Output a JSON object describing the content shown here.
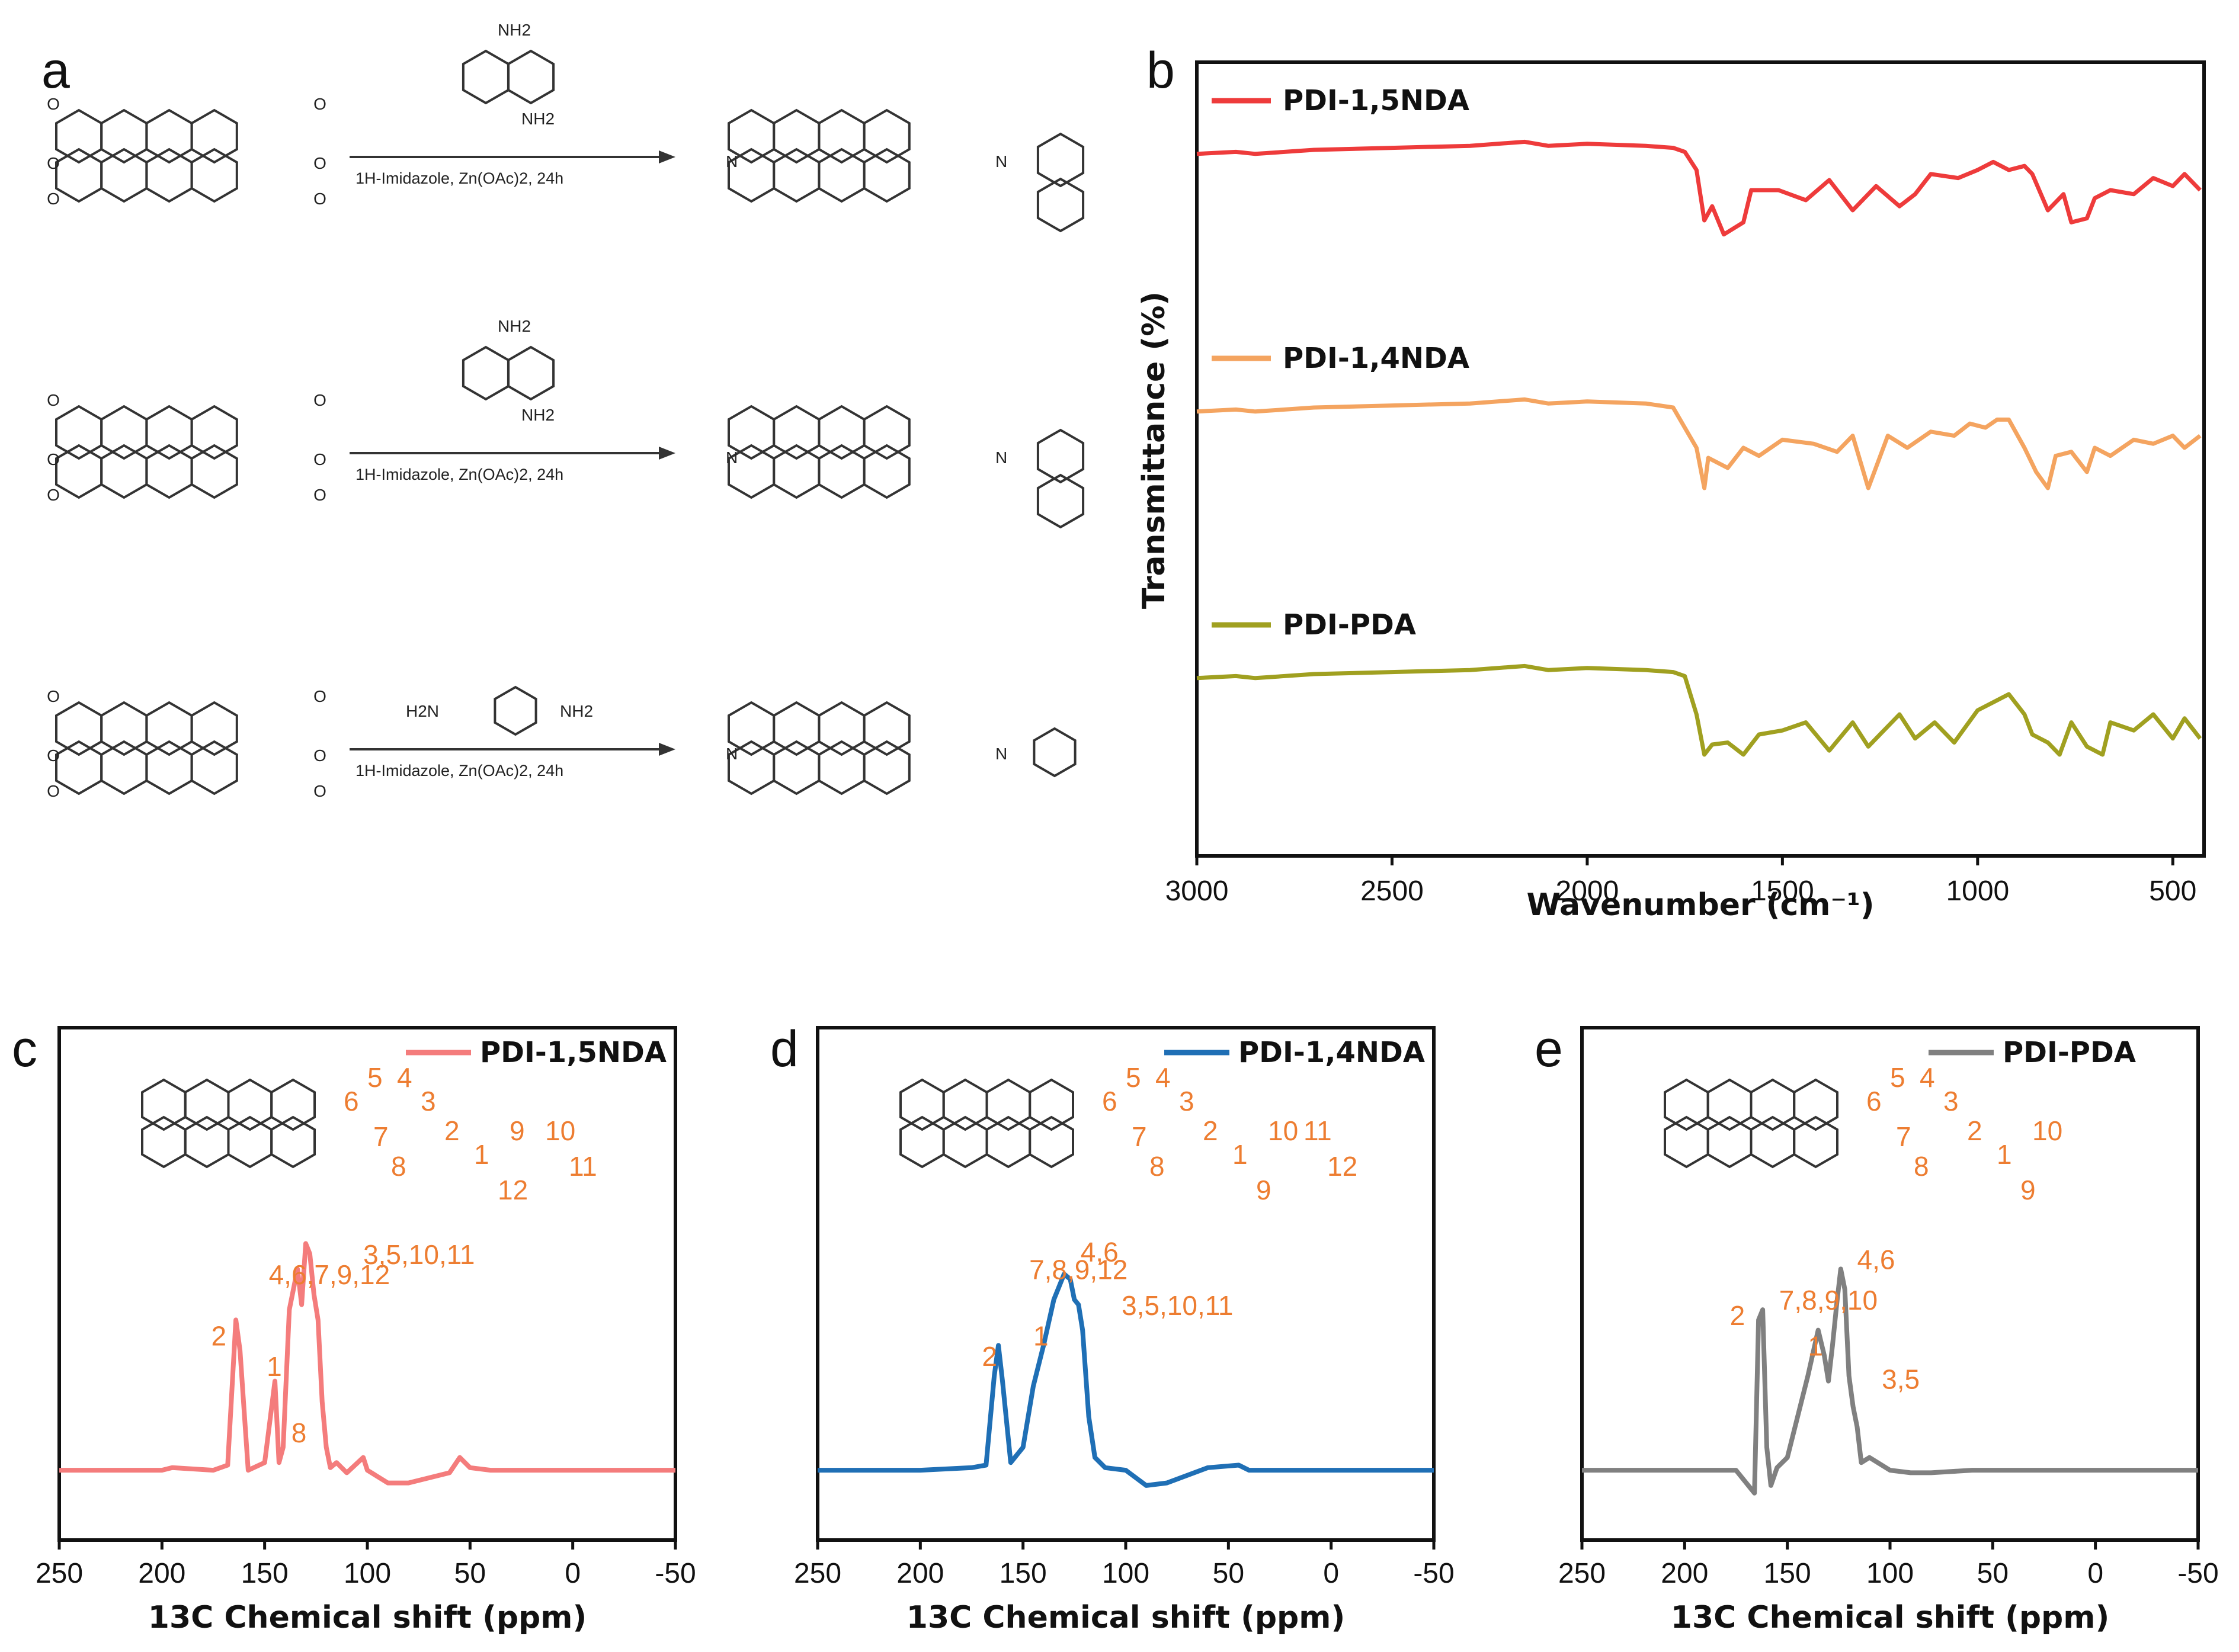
{
  "panel_a": {
    "letter": "a",
    "reactions": [
      {
        "amine": "1,5-diaminonaphthalene",
        "amine_top": "NH2",
        "amine_bottom": "NH2",
        "conditions": "1H-Imidazole, Zn(OAc)2, 24h"
      },
      {
        "amine": "1,4-diaminonaphthalene",
        "amine_top": "NH2",
        "amine_bottom": "NH2",
        "conditions": "1H-Imidazole, Zn(OAc)2, 24h"
      },
      {
        "amine": "p-phenylenediamine",
        "amine_left": "H2N",
        "amine_right": "NH2",
        "conditions": "1H-Imidazole, Zn(OAc)2, 24h"
      }
    ],
    "atom_O": "O",
    "atom_N": "N"
  },
  "colors": {
    "pdi15": "#ee3b3b",
    "pdi14": "#f4a460",
    "pdipda": "#a0a020",
    "nmr_c": "#f47c7c",
    "nmr_d": "#1f6fb5",
    "nmr_e": "#808080",
    "assign": "#ed7d31"
  },
  "chart_data": [
    {
      "panel": "b",
      "type": "line",
      "xlabel": "Wavenumber (cm⁻¹)",
      "ylabel": "Transmittance (%)",
      "xlim": [
        3000,
        420
      ],
      "x_reversed": true,
      "ticks": [
        "3000",
        "2500",
        "2000",
        "1500",
        "1000",
        "500"
      ],
      "series": [
        {
          "name": "PDI-1,5NDA",
          "offset": 0,
          "x": [
            3000,
            2900,
            2850,
            2700,
            2500,
            2300,
            2160,
            2100,
            2000,
            1850,
            1780,
            1750,
            1720,
            1700,
            1680,
            1650,
            1600,
            1580,
            1510,
            1440,
            1380,
            1320,
            1260,
            1200,
            1160,
            1120,
            1050,
            1000,
            960,
            920,
            880,
            860,
            820,
            780,
            760,
            720,
            700,
            660,
            600,
            550,
            500,
            470,
            430
          ],
          "y": [
            78,
            79,
            78,
            80,
            81,
            82,
            84,
            82,
            83,
            82,
            81,
            79,
            70,
            45,
            52,
            38,
            44,
            60,
            60,
            55,
            65,
            50,
            62,
            52,
            58,
            68,
            66,
            70,
            74,
            70,
            72,
            68,
            50,
            58,
            44,
            46,
            56,
            60,
            58,
            66,
            62,
            68,
            60
          ]
        },
        {
          "name": "PDI-1,4NDA",
          "offset": 0,
          "x": [
            3000,
            2900,
            2850,
            2700,
            2500,
            2300,
            2160,
            2100,
            2000,
            1850,
            1780,
            1750,
            1720,
            1700,
            1690,
            1640,
            1600,
            1560,
            1500,
            1420,
            1360,
            1320,
            1280,
            1230,
            1180,
            1120,
            1060,
            1020,
            980,
            950,
            920,
            880,
            850,
            820,
            800,
            760,
            720,
            700,
            660,
            600,
            550,
            500,
            470,
            430
          ],
          "y": [
            78,
            79,
            78,
            80,
            81,
            82,
            84,
            82,
            83,
            82,
            80,
            70,
            60,
            40,
            55,
            50,
            60,
            56,
            64,
            62,
            58,
            66,
            40,
            66,
            60,
            68,
            66,
            72,
            70,
            74,
            74,
            60,
            48,
            40,
            56,
            58,
            48,
            60,
            56,
            64,
            62,
            66,
            60,
            66
          ]
        },
        {
          "name": "PDI-PDA",
          "offset": 0,
          "x": [
            3000,
            2900,
            2850,
            2700,
            2500,
            2300,
            2160,
            2100,
            2000,
            1850,
            1780,
            1750,
            1720,
            1700,
            1680,
            1640,
            1600,
            1560,
            1500,
            1440,
            1380,
            1320,
            1280,
            1200,
            1160,
            1110,
            1060,
            1000,
            960,
            920,
            880,
            860,
            820,
            790,
            760,
            720,
            680,
            660,
            600,
            550,
            500,
            470,
            430
          ],
          "y": [
            78,
            79,
            78,
            80,
            81,
            82,
            84,
            82,
            83,
            82,
            81,
            79,
            60,
            40,
            45,
            46,
            40,
            50,
            52,
            56,
            42,
            56,
            44,
            60,
            48,
            56,
            46,
            62,
            66,
            70,
            60,
            50,
            46,
            40,
            56,
            44,
            40,
            56,
            52,
            60,
            48,
            58,
            48
          ]
        }
      ]
    },
    {
      "panel": "c",
      "type": "line",
      "xlabel": "13C Chemical shift (ppm)",
      "legend": "PDI-1,5NDA",
      "xlim": [
        250,
        -50
      ],
      "x_reversed": true,
      "ticks": [
        "250",
        "200",
        "150",
        "100",
        "50",
        "0",
        "-50"
      ],
      "x": [
        250,
        200,
        195,
        175,
        168,
        164,
        162,
        158,
        150,
        145,
        143,
        141,
        138,
        134,
        132,
        130,
        128,
        126,
        124,
        122,
        120,
        118,
        115,
        110,
        102,
        100,
        90,
        80,
        60,
        55,
        50,
        40,
        0,
        -50
      ],
      "y": [
        3,
        3,
        4,
        3,
        5,
        62,
        50,
        3,
        6,
        38,
        6,
        12,
        66,
        82,
        68,
        92,
        88,
        72,
        62,
        30,
        12,
        4,
        6,
        2,
        8,
        3,
        -2,
        -2,
        2,
        8,
        4,
        3,
        3,
        3
      ],
      "annotations": [
        {
          "text": "4,6,7,9,12",
          "x": 148,
          "y": 76
        },
        {
          "text": "3,5,10,11",
          "x": 102,
          "y": 84
        },
        {
          "text": "2",
          "x": 176,
          "y": 52
        },
        {
          "text": "1",
          "x": 149,
          "y": 40
        },
        {
          "text": "8",
          "x": 137,
          "y": 14
        }
      ]
    },
    {
      "panel": "d",
      "type": "line",
      "xlabel": "13C Chemical shift (ppm)",
      "legend": "PDI-1,4NDA",
      "xlim": [
        250,
        -50
      ],
      "x_reversed": true,
      "ticks": [
        "250",
        "200",
        "150",
        "100",
        "50",
        "0",
        "-50"
      ],
      "x": [
        250,
        200,
        175,
        168,
        164,
        162,
        160,
        156,
        150,
        145,
        140,
        135,
        130,
        127,
        125,
        123,
        121,
        118,
        115,
        110,
        100,
        90,
        80,
        60,
        45,
        40,
        0,
        -50
      ],
      "y": [
        3,
        3,
        4,
        5,
        40,
        52,
        38,
        6,
        12,
        36,
        52,
        70,
        80,
        78,
        70,
        68,
        58,
        24,
        8,
        4,
        3,
        -3,
        -2,
        4,
        5,
        3,
        3,
        3
      ],
      "annotations": [
        {
          "text": "7,8,9,12",
          "x": 147,
          "y": 78
        },
        {
          "text": "4,6",
          "x": 122,
          "y": 85
        },
        {
          "text": "3,5,10,11",
          "x": 102,
          "y": 64
        },
        {
          "text": "2",
          "x": 170,
          "y": 44
        },
        {
          "text": "1",
          "x": 145,
          "y": 52
        }
      ]
    },
    {
      "panel": "e",
      "type": "line",
      "xlabel": "13C Chemical shift (ppm)",
      "legend": "PDI-PDA",
      "xlim": [
        250,
        -50
      ],
      "x_reversed": true,
      "ticks": [
        "250",
        "200",
        "150",
        "100",
        "50",
        "0",
        "-50"
      ],
      "x": [
        250,
        200,
        175,
        168,
        166,
        164,
        162,
        160,
        158,
        155,
        150,
        140,
        135,
        132,
        130,
        128,
        126,
        124,
        122,
        120,
        118,
        116,
        114,
        110,
        100,
        90,
        80,
        60,
        40,
        0,
        -50
      ],
      "y": [
        3,
        3,
        3,
        -4,
        -6,
        62,
        66,
        12,
        -3,
        4,
        8,
        40,
        58,
        48,
        38,
        52,
        68,
        82,
        74,
        40,
        28,
        20,
        6,
        8,
        3,
        2,
        2,
        3,
        3,
        3,
        3
      ],
      "annotations": [
        {
          "text": "7,8,9,10",
          "x": 154,
          "y": 66
        },
        {
          "text": "4,6",
          "x": 116,
          "y": 82
        },
        {
          "text": "3,5",
          "x": 104,
          "y": 35
        },
        {
          "text": "2",
          "x": 178,
          "y": 60
        },
        {
          "text": "1",
          "x": 140,
          "y": 48
        }
      ]
    }
  ],
  "structure_labels": {
    "c": [
      "5",
      "4",
      "6",
      "3",
      "7",
      "2",
      "1",
      "8",
      "12",
      "9",
      "10",
      "11"
    ],
    "d": [
      "5",
      "4",
      "6",
      "3",
      "7",
      "2",
      "1",
      "8",
      "9",
      "10",
      "11",
      "12"
    ],
    "e": [
      "5",
      "4",
      "6",
      "3",
      "7",
      "2",
      "1",
      "8",
      "9",
      "10"
    ]
  },
  "panel_letters": {
    "b": "b",
    "c": "c",
    "d": "d",
    "e": "e"
  }
}
